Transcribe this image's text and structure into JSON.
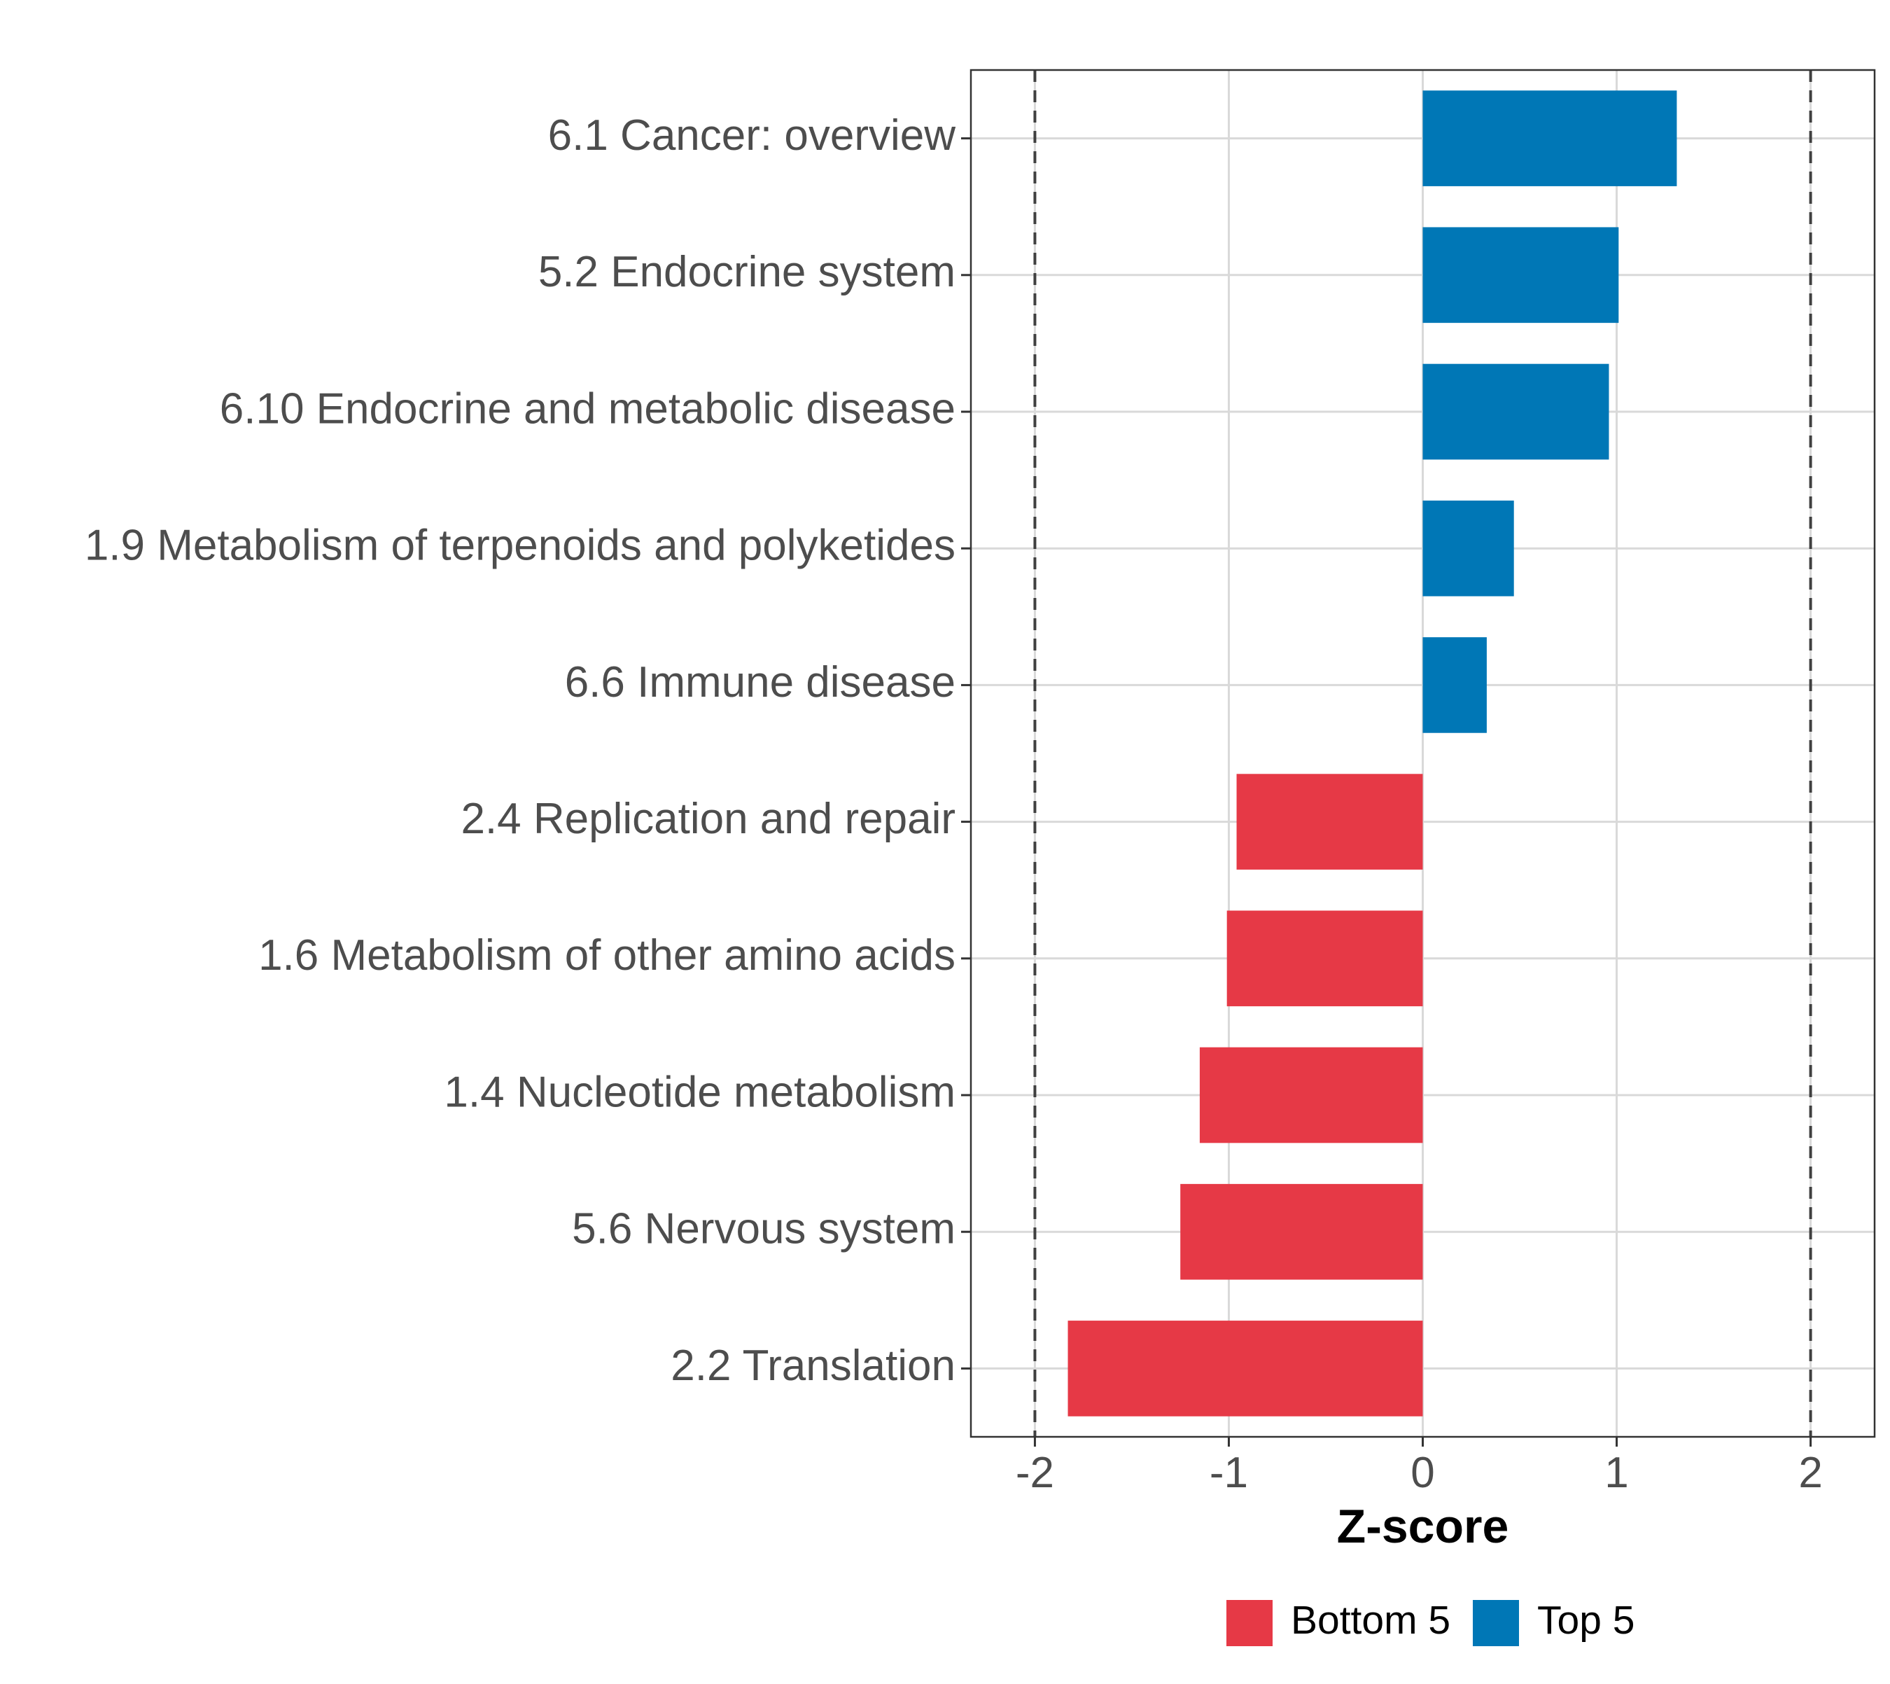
{
  "chart_data": {
    "type": "bar",
    "orientation": "horizontal",
    "title": "",
    "xlabel": "Z-score",
    "ylabel": "",
    "xlim": [
      -2.33,
      2.33
    ],
    "xticks": [
      -2,
      -1,
      0,
      1,
      2
    ],
    "xtick_labels": [
      "-2",
      "-1",
      "0",
      "1",
      "2"
    ],
    "reference_lines": [
      -2,
      2
    ],
    "grid": true,
    "categories": [
      "6.1 Cancer: overview",
      "5.2 Endocrine system",
      "6.10 Endocrine and metabolic disease",
      "1.9 Metabolism of terpenoids and polyketides",
      "6.6 Immune disease",
      "2.4 Replication and repair",
      "1.6 Metabolism of other amino acids",
      "1.4 Nucleotide metabolism",
      "5.6 Nervous system",
      "2.2 Translation"
    ],
    "values": [
      1.31,
      1.01,
      0.96,
      0.47,
      0.33,
      -0.96,
      -1.01,
      -1.15,
      -1.25,
      -1.83
    ],
    "groups": [
      "Top 5",
      "Top 5",
      "Top 5",
      "Top 5",
      "Top 5",
      "Bottom 5",
      "Bottom 5",
      "Bottom 5",
      "Bottom 5",
      "Bottom 5"
    ],
    "legend": {
      "position": "bottom",
      "entries": [
        {
          "label": "Bottom 5",
          "color": "#E63946"
        },
        {
          "label": "Top 5",
          "color": "#0077B6"
        }
      ]
    },
    "colors": {
      "Top 5": "#0077B6",
      "Bottom 5": "#E63946"
    }
  }
}
